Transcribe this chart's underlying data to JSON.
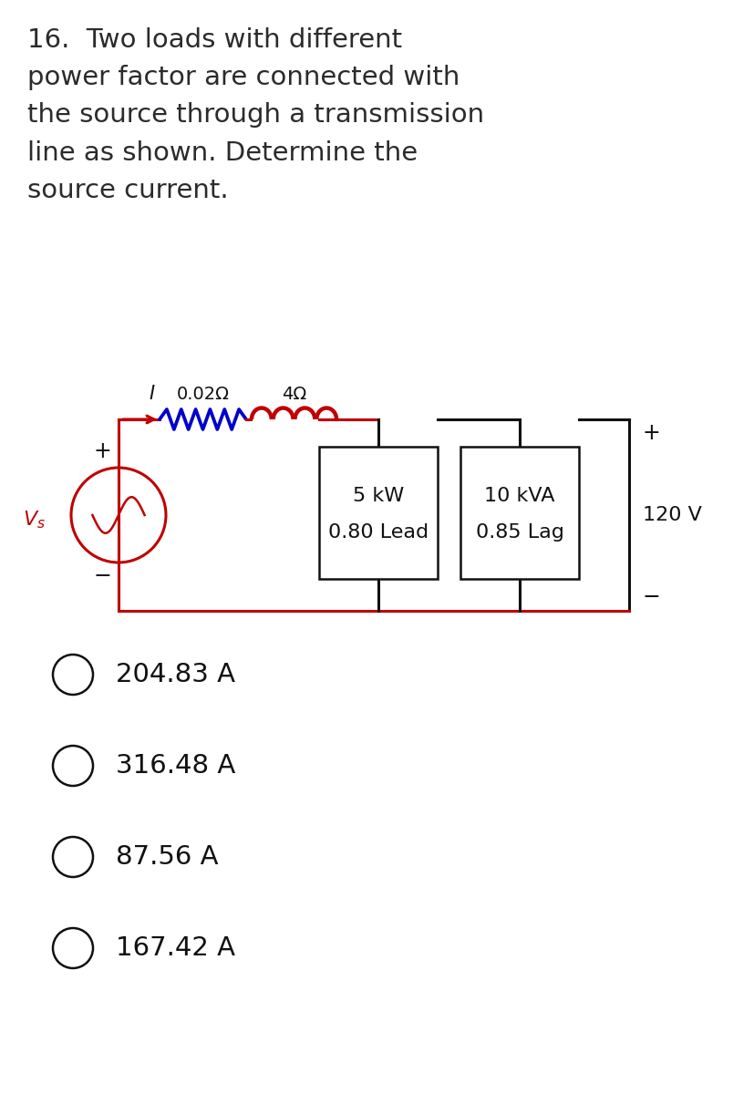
{
  "title_text": "16.  Two loads with different\npower factor are connected with\nthe source through a transmission\nline as shown. Determine the\nsource current.",
  "title_fontsize": 21,
  "question_text_color": "#2b2b2b",
  "background_color": "#ffffff",
  "options": [
    "204.83 A",
    "316.48 A",
    "87.56 A",
    "167.42 A"
  ],
  "option_fontsize": 21,
  "circuit": {
    "resistor_label": "0.02Ω",
    "inductor_label": "4Ω",
    "current_label": "I",
    "load1_line1": "5 kW",
    "load1_line2": "0.80 Lead",
    "load2_line1": "10 kVA",
    "load2_line2": "0.85 Lag",
    "voltage_label": "120 V",
    "wire_color_red": "#c00000",
    "wire_color_blue": "#0000cc",
    "wire_color_black": "#111111",
    "resistor_color": "#0000cc",
    "inductor_color": "#c00000"
  }
}
